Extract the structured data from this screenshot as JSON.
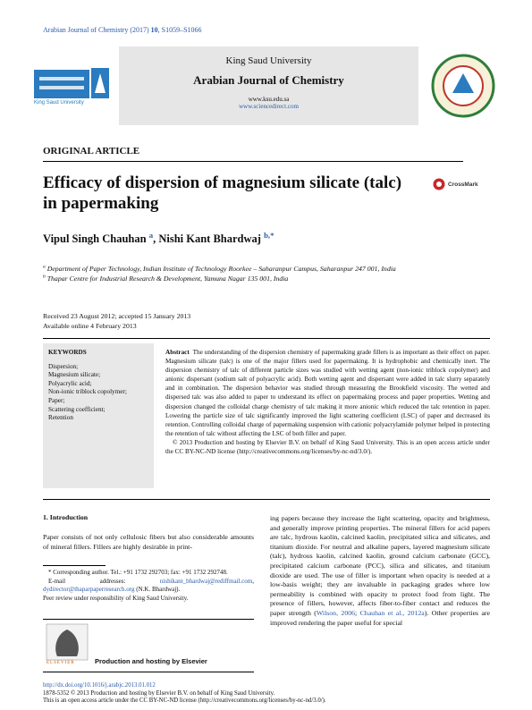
{
  "running_header": {
    "journal": "Arabian Journal of Chemistry (2017)",
    "volume": "10",
    "pages": ", S1059–S1066"
  },
  "banner": {
    "university": "King Saud University",
    "journal": "Arabian Journal of Chemistry",
    "url1": "www.ksu.edu.sa",
    "url2": "www.sciencedirect.com",
    "logo_text": "King Saud University"
  },
  "article_type": "ORIGINAL ARTICLE",
  "title": "Efficacy of dispersion of magnesium silicate (talc) in papermaking",
  "crossmark": "CrossMark",
  "authors": [
    {
      "name": "Vipul Singh Chauhan",
      "sup": "a"
    },
    {
      "name": "Nishi Kant Bhardwaj",
      "sup": "b,*"
    }
  ],
  "affiliations": [
    {
      "mark": "a",
      "text": "Department of Paper Technology, Indian Institute of Technology Roorkee – Saharanpur Campus, Saharanpur 247 001, India"
    },
    {
      "mark": "b",
      "text": "Thapar Centre for Industrial Research & Development, Yamuna Nagar 135 001, India"
    }
  ],
  "dates": {
    "received": "Received 23 August 2012; accepted 15 January 2013",
    "online": "Available online 4 February 2013"
  },
  "keywords": {
    "heading": "KEYWORDS",
    "items": [
      "Dispersion;",
      "Magnesium silicate;",
      "Polyacrylic acid;",
      "Non-ionic triblock copolymer;",
      "Paper;",
      "Scattering coefficient;",
      "Retention"
    ]
  },
  "abstract": {
    "label": "Abstract",
    "text": "The understanding of the dispersion chemistry of papermaking grade fillers is as important as their effect on paper. Magnesium silicate (talc) is one of the major fillers used for papermaking. It is hydrophobic and chemically inert. The dispersion chemistry of talc of different particle sizes was studied with wetting agent (non-ionic triblock copolymer) and anionic dispersant (sodium salt of polyacrylic acid). Both wetting agent and dispersant were added in talc slurry separately and in combination. The dispersion behavior was studied through measuring the Brookfield viscosity. The wetted and dispersed talc was also added to paper to understand its effect on papermaking process and paper properties. Wetting and dispersion changed the colloidal charge chemistry of talc making it more anionic which reduced the talc retention in paper. Lowering the particle size of talc significantly improved the light scattering coefficient (LSC) of paper and decreased its retention. Controlling colloidal charge of papermaking suspension with cationic polyacrylamide polymer helped in protecting the retention of talc without affecting the LSC of both filler and paper.",
    "copyright": "© 2013 Production and hosting by Elsevier B.V. on behalf of King Saud University. This is an open access article under the CC BY-NC-ND license (http://creativecommons.org/licenses/by-nc-nd/3.0/)."
  },
  "introduction": {
    "heading": "1. Introduction",
    "col1": "Paper consists of not only cellulosic fibers but also considerable amounts of mineral fillers. Fillers are highly desirable in print-",
    "col2": [
      "ing papers because they increase the light scattering, opacity and brightness, and generally improve printing properties. The mineral fillers for acid papers are talc, hydrous kaolin, calcined kaolin, precipitated silica and silicates, and titanium dioxide. For neutral and alkaline papers, layered magnesium silicate (talc), hydrous kaolin, calcined kaolin, ground calcium carbonate (GCC), precipitated calcium carbonate (PCC), silica and silicates, and titanium dioxide are used. The use of filler is important when opacity is needed at a low-basis weight; they are invaluable in packaging grades where low permeability is combined with opacity to protect food from light. The presence of fillers, however, affects fiber-to-fiber contact and reduces the paper strength (",
      "Wilson, 2006",
      "; ",
      "Chauhan et al., 2012a",
      "). Other properties are improved rendering the paper useful for special"
    ]
  },
  "footnotes": {
    "corresponding": "* Corresponding author. Tel.: +91 1732 292703; fax: +91 1732 292748.",
    "email_label": "E-mail addresses:",
    "email1": "nishikant_bhardwaj@rediffmail.com",
    "sep": ",",
    "email2": "dydirector@thaparpaperresearch.org",
    "email_owner": "(N.K. Bhardwaj).",
    "peer_review": "Peer review under responsibility of King Saud University."
  },
  "elsevier": {
    "logo": "ELSEVIER",
    "text": "Production and hosting by Elsevier"
  },
  "footer": {
    "doi": "http://dx.doi.org/10.1016/j.arabjc.2013.01.012",
    "issn": "1878-5352 © 2013 Production and hosting by Elsevier B.V. on behalf of King Saud University.",
    "license": "This is an open access article under the CC BY-NC-ND license (http://creativecommons.org/licenses/by-nc-nd/3.0/)."
  }
}
